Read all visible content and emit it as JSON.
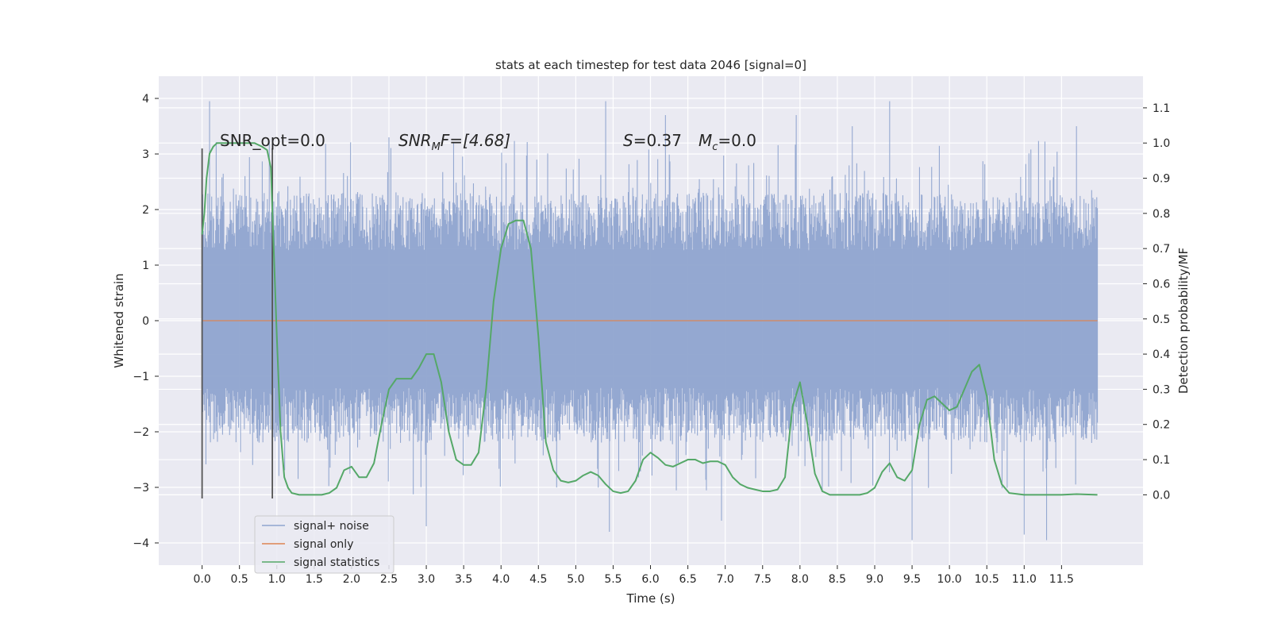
{
  "chart_data": {
    "type": "line",
    "title": "stats at each timestep for test data 2046 [signal=0]",
    "xlabel": "Time (s)",
    "ylabel": "Whitened strain",
    "ylabel_right": "Detection probability/MF",
    "xlim": [
      -0.58,
      12.59
    ],
    "ylim": [
      -4.4,
      4.4
    ],
    "ylim_right": [
      -0.2,
      1.19
    ],
    "x_ticks": [
      0.0,
      0.5,
      1.0,
      1.5,
      2.0,
      2.5,
      3.0,
      3.5,
      4.0,
      4.5,
      5.0,
      5.5,
      6.0,
      6.5,
      7.0,
      7.5,
      8.0,
      8.5,
      9.0,
      9.5,
      10.0,
      10.5,
      11.0,
      11.5
    ],
    "x_tick_labels": [
      "0.0",
      "0.5",
      "1.0",
      "1.5",
      "2.0",
      "2.5",
      "3.0",
      "3.5",
      "4.0",
      "4.5",
      "5.0",
      "5.5",
      "6.0",
      "6.5",
      "7.0",
      "7.5",
      "8.0",
      "8.5",
      "9.0",
      "9.5",
      "10.0",
      "10.5",
      "11.0",
      "11.5"
    ],
    "y_ticks": [
      -4,
      -3,
      -2,
      -1,
      0,
      1,
      2,
      3,
      4
    ],
    "y_tick_labels": [
      "−4",
      "−3",
      "−2",
      "−1",
      "0",
      "1",
      "2",
      "3",
      "4"
    ],
    "y_ticks_right": [
      0.0,
      0.1,
      0.2,
      0.3,
      0.4,
      0.5,
      0.6,
      0.7,
      0.8,
      0.9,
      1.0,
      1.1
    ],
    "y_tick_labels_right": [
      "0.0",
      "0.1",
      "0.2",
      "0.3",
      "0.4",
      "0.5",
      "0.6",
      "0.7",
      "0.8",
      "0.9",
      "1.0",
      "1.1"
    ],
    "grid": true,
    "legend_placement": "lower-left",
    "annotations": {
      "snr_opt": "SNR_opt=0.0",
      "snr_mf_sym": "SNR",
      "snr_mf_sub": "M",
      "snr_mf_rest": "F=[4.68]",
      "s_sym": "S",
      "s_rest": "=0.37",
      "mc_sym": "M",
      "mc_sub": "c",
      "mc_rest": "=0.0"
    },
    "vertical_lines_x": [
      0.0,
      0.94
    ],
    "vertical_lines_y": [
      -3.2,
      3.1
    ],
    "series": [
      {
        "name": "signal+ noise",
        "color": "#8fa4cf",
        "x_range": [
          0.0,
          11.98
        ],
        "typical_envelope": [
          -2.2,
          2.3
        ],
        "peak_extent": [
          -3.9,
          4.0
        ],
        "approx_peaks": [
          {
            "x": 0.1,
            "y": 3.95
          },
          {
            "x": 2.5,
            "y": 3.3
          },
          {
            "x": 3.0,
            "y": -3.7
          },
          {
            "x": 5.4,
            "y": 3.95
          },
          {
            "x": 5.45,
            "y": -3.8
          },
          {
            "x": 6.2,
            "y": 3.7
          },
          {
            "x": 6.95,
            "y": -3.6
          },
          {
            "x": 7.95,
            "y": 3.7
          },
          {
            "x": 8.7,
            "y": 3.5
          },
          {
            "x": 9.2,
            "y": 3.95
          },
          {
            "x": 9.5,
            "y": -3.95
          },
          {
            "x": 11.0,
            "y": -3.85
          },
          {
            "x": 11.3,
            "y": -3.95
          },
          {
            "x": 11.7,
            "y": 3.5
          }
        ]
      },
      {
        "name": "signal only",
        "color": "#dd8452",
        "x": [
          0.0,
          11.98
        ],
        "y": [
          0.0,
          0.0
        ]
      },
      {
        "name": "signal statistics",
        "color": "#55a868",
        "axis": "right",
        "x": [
          0.0,
          0.03,
          0.06,
          0.1,
          0.15,
          0.2,
          0.3,
          0.5,
          0.7,
          0.8,
          0.87,
          0.92,
          0.95,
          1.0,
          1.05,
          1.1,
          1.15,
          1.2,
          1.3,
          1.4,
          1.5,
          1.6,
          1.7,
          1.8,
          1.9,
          2.0,
          2.1,
          2.2,
          2.3,
          2.4,
          2.5,
          2.6,
          2.7,
          2.8,
          2.9,
          3.0,
          3.1,
          3.2,
          3.3,
          3.4,
          3.5,
          3.6,
          3.7,
          3.8,
          3.9,
          4.0,
          4.1,
          4.2,
          4.3,
          4.4,
          4.5,
          4.6,
          4.7,
          4.8,
          4.9,
          5.0,
          5.1,
          5.2,
          5.3,
          5.4,
          5.5,
          5.6,
          5.7,
          5.8,
          5.9,
          6.0,
          6.1,
          6.2,
          6.3,
          6.4,
          6.5,
          6.6,
          6.7,
          6.8,
          6.9,
          7.0,
          7.1,
          7.2,
          7.3,
          7.4,
          7.5,
          7.6,
          7.7,
          7.8,
          7.9,
          8.0,
          8.1,
          8.2,
          8.3,
          8.4,
          8.5,
          8.6,
          8.7,
          8.8,
          8.9,
          9.0,
          9.1,
          9.2,
          9.3,
          9.4,
          9.5,
          9.6,
          9.7,
          9.8,
          9.9,
          10.0,
          10.1,
          10.2,
          10.3,
          10.4,
          10.5,
          10.6,
          10.7,
          10.8,
          11.0,
          11.5,
          11.7,
          11.98
        ],
        "y": [
          0.74,
          0.8,
          0.9,
          0.97,
          0.99,
          1.0,
          1.0,
          1.0,
          1.0,
          0.99,
          0.98,
          0.93,
          0.75,
          0.45,
          0.18,
          0.05,
          0.02,
          0.005,
          0.0,
          0.0,
          0.0,
          0.0,
          0.005,
          0.02,
          0.07,
          0.08,
          0.05,
          0.05,
          0.09,
          0.2,
          0.3,
          0.33,
          0.33,
          0.33,
          0.36,
          0.4,
          0.4,
          0.32,
          0.18,
          0.1,
          0.085,
          0.085,
          0.12,
          0.3,
          0.55,
          0.7,
          0.77,
          0.78,
          0.78,
          0.7,
          0.45,
          0.15,
          0.07,
          0.04,
          0.035,
          0.04,
          0.055,
          0.065,
          0.055,
          0.03,
          0.01,
          0.005,
          0.01,
          0.04,
          0.1,
          0.12,
          0.105,
          0.085,
          0.08,
          0.09,
          0.1,
          0.1,
          0.09,
          0.095,
          0.095,
          0.085,
          0.05,
          0.03,
          0.02,
          0.015,
          0.01,
          0.01,
          0.015,
          0.05,
          0.25,
          0.32,
          0.2,
          0.06,
          0.01,
          0.0,
          0.0,
          0.0,
          0.0,
          0.0,
          0.005,
          0.02,
          0.065,
          0.09,
          0.05,
          0.04,
          0.07,
          0.2,
          0.27,
          0.28,
          0.26,
          0.24,
          0.25,
          0.3,
          0.35,
          0.37,
          0.28,
          0.1,
          0.03,
          0.005,
          0.0,
          0.0,
          0.002,
          0.0
        ]
      }
    ]
  }
}
